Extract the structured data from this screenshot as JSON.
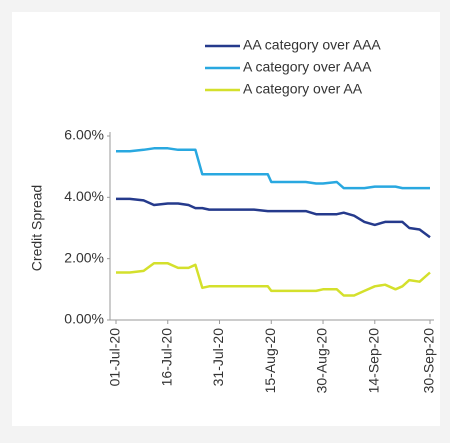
{
  "chart_data": {
    "type": "line",
    "y_label": "Credit Spread",
    "x": [
      "01-Jul-20",
      "05-Jul-20",
      "09-Jul-20",
      "12-Jul-20",
      "16-Jul-20",
      "19-Jul-20",
      "22-Jul-20",
      "24-Jul-20",
      "26-Jul-20",
      "28-Jul-20",
      "05-Aug-20",
      "10-Aug-20",
      "14-Aug-20",
      "15-Aug-20",
      "20-Aug-20",
      "25-Aug-20",
      "28-Aug-20",
      "30-Aug-20",
      "03-Sep-20",
      "05-Sep-20",
      "08-Sep-20",
      "11-Sep-20",
      "14-Sep-20",
      "17-Sep-20",
      "20-Sep-20",
      "22-Sep-20",
      "24-Sep-20",
      "27-Sep-20",
      "30-Sep-20"
    ],
    "series": [
      {
        "name": "AA category over AAA",
        "color": "#253a8c",
        "values": [
          3.95,
          3.95,
          3.9,
          3.75,
          3.8,
          3.8,
          3.75,
          3.65,
          3.65,
          3.6,
          3.6,
          3.6,
          3.55,
          3.55,
          3.55,
          3.55,
          3.45,
          3.45,
          3.45,
          3.5,
          3.4,
          3.2,
          3.1,
          3.2,
          3.2,
          3.2,
          3.0,
          2.95,
          2.7
        ]
      },
      {
        "name": "A category over AAA",
        "color": "#29a8e0",
        "values": [
          5.5,
          5.5,
          5.55,
          5.6,
          5.6,
          5.55,
          5.55,
          5.55,
          4.75,
          4.75,
          4.75,
          4.75,
          4.75,
          4.5,
          4.5,
          4.5,
          4.45,
          4.45,
          4.5,
          4.3,
          4.3,
          4.3,
          4.35,
          4.35,
          4.35,
          4.3,
          4.3,
          4.3,
          4.3
        ]
      },
      {
        "name": "A category over AA",
        "color": "#d4e02c",
        "values": [
          1.55,
          1.55,
          1.6,
          1.85,
          1.85,
          1.7,
          1.7,
          1.8,
          1.05,
          1.1,
          1.1,
          1.1,
          1.1,
          0.95,
          0.95,
          0.95,
          0.95,
          1.0,
          1.0,
          0.8,
          0.8,
          0.95,
          1.1,
          1.15,
          1.0,
          1.1,
          1.3,
          1.25,
          1.55
        ]
      }
    ],
    "xlim": [
      "01-Jul-20",
      "30-Sep-20"
    ],
    "xticks": [
      "01-Jul-20",
      "16-Jul-20",
      "31-Jul-20",
      "15-Aug-20",
      "30-Aug-20",
      "14-Sep-20",
      "30-Sep-20"
    ],
    "ylim": [
      0,
      6
    ],
    "yticks": [
      {
        "value": 0,
        "label": "0.00%"
      },
      {
        "value": 2,
        "label": "2.00%"
      },
      {
        "value": 4,
        "label": "4.00%"
      },
      {
        "value": 6,
        "label": "6.00%"
      }
    ],
    "grid": false,
    "legend": "top-right"
  }
}
